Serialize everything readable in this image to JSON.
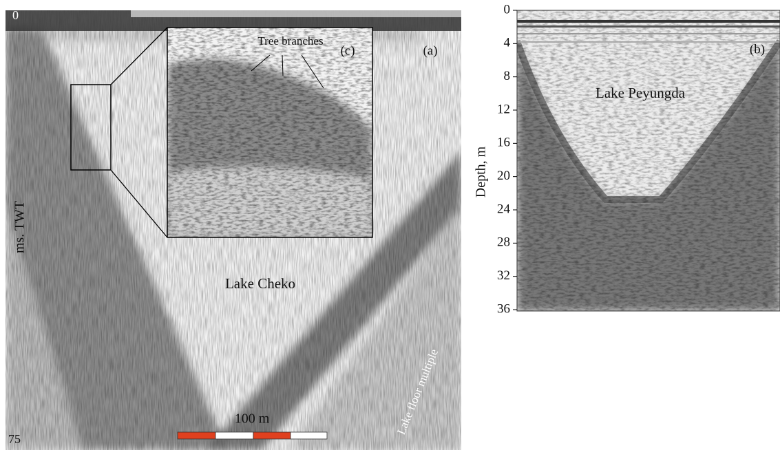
{
  "panel_a": {
    "label": "(a)",
    "title": "Lake Cheko",
    "axis_label": "ms. TWT",
    "axis_top": "0",
    "axis_bottom": "75",
    "scale_bar": "100 m",
    "annotation": "Lake floor multiple",
    "inset": {
      "label": "(c)",
      "annotation": "Tree branches"
    }
  },
  "panel_b": {
    "label": "(b)",
    "title": "Lake Peyungda",
    "axis_label": "Depth, m",
    "ylim": [
      0,
      36
    ],
    "yticks": [
      0,
      4,
      8,
      12,
      16,
      20,
      24,
      28,
      32,
      36
    ]
  }
}
